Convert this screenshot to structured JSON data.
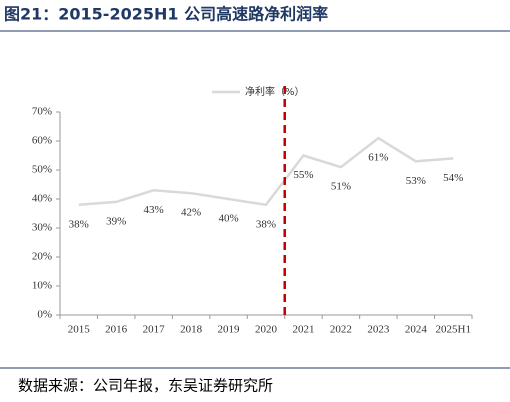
{
  "chart_data": {
    "type": "line",
    "title": "图21：2015-2025H1 公司高速路净利润率",
    "source": "数据来源：公司年报，东吴证券研究所",
    "categories": [
      "2015",
      "2016",
      "2017",
      "2018",
      "2019",
      "2020",
      "2021",
      "2022",
      "2023",
      "2024",
      "2025H1"
    ],
    "series": [
      {
        "name": "净利率（%）",
        "color": "#d9d9d9",
        "values": [
          38,
          39,
          43,
          42,
          40,
          38,
          55,
          51,
          61,
          53,
          54
        ],
        "value_labels": [
          "38%",
          "39%",
          "43%",
          "42%",
          "40%",
          "38%",
          "55%",
          "51%",
          "61%",
          "53%",
          "54%"
        ]
      }
    ],
    "ylim": [
      0,
      70
    ],
    "yticks": [
      {
        "value": 0,
        "label": "0%"
      },
      {
        "value": 10,
        "label": "10%"
      },
      {
        "value": 20,
        "label": "20%"
      },
      {
        "value": 30,
        "label": "30%"
      },
      {
        "value": 40,
        "label": "40%"
      },
      {
        "value": 50,
        "label": "50%"
      },
      {
        "value": 60,
        "label": "60%"
      },
      {
        "value": 70,
        "label": "70%"
      }
    ],
    "grid": false
  }
}
